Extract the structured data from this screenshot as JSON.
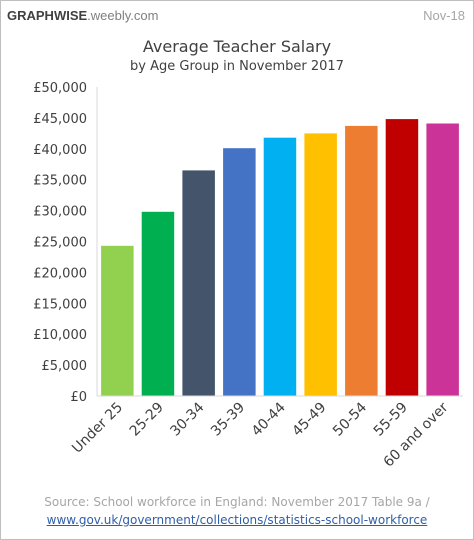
{
  "brand": {
    "name": "GRAPHWISE",
    "domain": ".weebly.com"
  },
  "date": "Nov-18",
  "source": {
    "text": "Source: School workforce in England: November 2017 Table 9a /",
    "link": "www.gov.uk/government/collections/statistics-school-workforce"
  },
  "chart_data": {
    "type": "bar",
    "title": "Average Teacher Salary",
    "subtitle": "by Age Group in November 2017",
    "xlabel": "",
    "ylabel": "",
    "ylim": [
      0,
      50000
    ],
    "ytick_values": [
      0,
      5000,
      10000,
      15000,
      20000,
      25000,
      30000,
      35000,
      40000,
      45000,
      50000
    ],
    "ytick_labels": [
      "£0",
      "£5,000",
      "£10,000",
      "£15,000",
      "£20,000",
      "£25,000",
      "£30,000",
      "£35,000",
      "£40,000",
      "£45,000",
      "£50,000"
    ],
    "categories": [
      "Under 25",
      "25-29",
      "30-34",
      "35-39",
      "40-44",
      "45-49",
      "50-54",
      "55-59",
      "60 and over"
    ],
    "values": [
      24300,
      29800,
      36500,
      40100,
      41800,
      42500,
      43700,
      44800,
      44100
    ],
    "colors": [
      "#92d050",
      "#00b050",
      "#44546a",
      "#4472c4",
      "#00b0f0",
      "#ffc000",
      "#ed7d31",
      "#c00000",
      "#cc3399"
    ],
    "grid": false,
    "legend": "none"
  }
}
